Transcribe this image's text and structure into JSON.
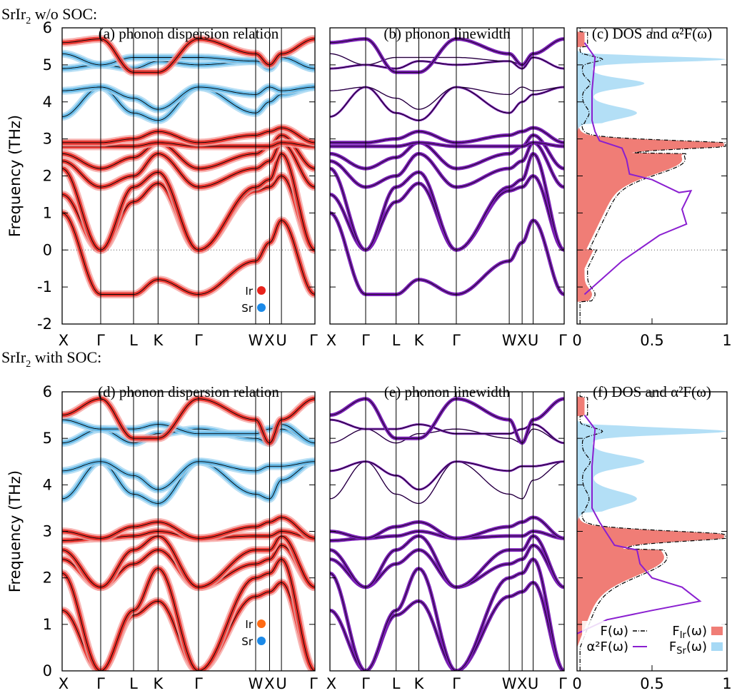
{
  "rows": [
    {
      "heading_prefix": "SrIr",
      "heading_sub": "2",
      "heading_suffix": " w/o SOC:",
      "titles": [
        "(a) phonon dispersion relation",
        "(b) phonon linewidth",
        "(c) DOS and α²F(ω)"
      ],
      "ylabel": "Frequency (THz)",
      "yticks": [
        "-2",
        "-1",
        "0",
        "1",
        "2",
        "3",
        "4",
        "5",
        "6"
      ],
      "ylim": [
        -2,
        6
      ],
      "path_labels": [
        "X",
        "Γ",
        "L",
        "K",
        "Γ",
        "W",
        "X",
        "U",
        "Γ"
      ],
      "dos_xticks": [
        "0",
        "0.5",
        "1"
      ],
      "legend_ir": "Ir",
      "legend_sr": "Sr"
    },
    {
      "heading_prefix": "SrIr",
      "heading_sub": "2",
      "heading_suffix": " with SOC:",
      "titles": [
        "(d) phonon dispersion relation",
        "(e) phonon linewidth",
        "(f) DOS and α²F(ω)"
      ],
      "ylabel": "Frequency (THz)",
      "yticks": [
        "0",
        "1",
        "2",
        "3",
        "4",
        "5",
        "6"
      ],
      "ylim": [
        0,
        6
      ],
      "path_labels": [
        "X",
        "Γ",
        "L",
        "K",
        "Γ",
        "W",
        "X",
        "U",
        "Γ"
      ],
      "dos_xticks": [
        "0",
        "0.5",
        "1"
      ],
      "legend_ir": "Ir",
      "legend_sr": "Sr",
      "dos_legend": {
        "f_label": "F(ω)",
        "a2f_label": "α²F(ω)",
        "fir_label": "F",
        "fir_sub": "Ir",
        "fir_tail": "(ω)",
        "fsr_label": "F",
        "fsr_sub": "Sr",
        "fsr_tail": "(ω)"
      }
    }
  ],
  "colors": {
    "ir": "#e8231c",
    "ir_light": "#f5a3a0",
    "sr": "#5ab4e5",
    "sr_light": "#a9d8f2",
    "linewidth": "#7a1fb5",
    "legend_ir_dot_no_soc": "#e8231c",
    "legend_ir_dot_soc": "#ff6a13",
    "legend_sr_dot": "#1c8ae8",
    "dos_ir_fill": "#f07d76",
    "dos_sr_fill": "#a6d9f5",
    "a2f": "#8a1fd0"
  },
  "chart_data": [
    {
      "type": "line",
      "title": "(a) phonon dispersion relation",
      "ylabel": "Frequency (THz)",
      "ylim": [
        -2,
        6
      ],
      "x_ticks": [
        "X",
        "Γ",
        "L",
        "K",
        "Γ",
        "W",
        "X",
        "U",
        "Γ"
      ],
      "series": [
        {
          "name": "Ir",
          "values": [
            1.5,
            0,
            1.7,
            2.1,
            0,
            1.7,
            2.0,
            2.6,
            0
          ]
        },
        {
          "name": "Sr",
          "values": [
            5.3,
            5.0,
            4.8,
            5.2,
            5.2,
            5.1,
            4.9,
            5.2,
            4.9
          ]
        }
      ]
    },
    {
      "type": "line",
      "title": "(b) phonon linewidth",
      "ylim": [
        -2,
        6
      ],
      "x_ticks": [
        "X",
        "Γ",
        "L",
        "K",
        "Γ",
        "W",
        "X",
        "U",
        "Γ"
      ]
    },
    {
      "type": "area",
      "title": "(c) DOS and α²F(ω)",
      "xlim": [
        0,
        1
      ],
      "ylim": [
        -2,
        6
      ]
    },
    {
      "type": "line",
      "title": "(d) phonon dispersion relation",
      "ylabel": "Frequency (THz)",
      "ylim": [
        0,
        6
      ],
      "x_ticks": [
        "X",
        "Γ",
        "L",
        "K",
        "Γ",
        "W",
        "X",
        "U",
        "Γ"
      ],
      "series": [
        {
          "name": "Ir",
          "values": [
            2.4,
            1.8,
            1.3,
            2.2,
            1.8,
            2.3,
            2.4,
            2.7,
            1.8
          ]
        },
        {
          "name": "Sr",
          "values": [
            5.4,
            5.2,
            5.1,
            5.3,
            5.1,
            5.1,
            5.2,
            5.3,
            4.9
          ]
        }
      ]
    },
    {
      "type": "line",
      "title": "(e) phonon linewidth",
      "ylim": [
        0,
        6
      ],
      "x_ticks": [
        "X",
        "Γ",
        "L",
        "K",
        "Γ",
        "W",
        "X",
        "U",
        "Γ"
      ]
    },
    {
      "type": "area",
      "title": "(f) DOS and α²F(ω)",
      "xlim": [
        0,
        1
      ],
      "ylim": [
        0,
        6
      ],
      "legend": [
        "F(ω)",
        "α²F(ω)",
        "FIr(ω)",
        "FSr(ω)"
      ]
    }
  ]
}
